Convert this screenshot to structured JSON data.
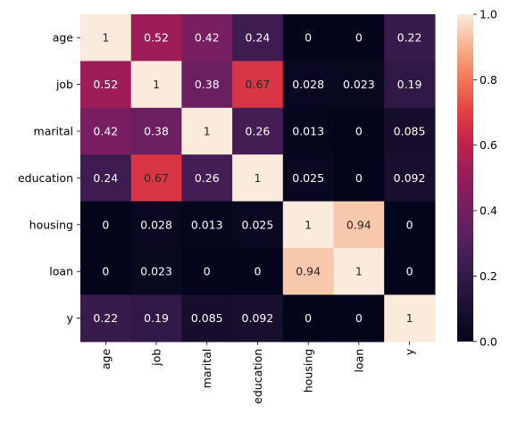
{
  "chart_data": {
    "type": "heatmap",
    "title": "",
    "xlabel": "",
    "ylabel": "",
    "rows": [
      "age",
      "job",
      "marital",
      "education",
      "housing",
      "loan",
      "y"
    ],
    "columns": [
      "age",
      "job",
      "marital",
      "education",
      "housing",
      "loan",
      "y"
    ],
    "values": [
      [
        1,
        0.52,
        0.42,
        0.24,
        0,
        0,
        0.22
      ],
      [
        0.52,
        1,
        0.38,
        0.67,
        0.028,
        0.023,
        0.19
      ],
      [
        0.42,
        0.38,
        1,
        0.26,
        0.013,
        0,
        0.085
      ],
      [
        0.24,
        0.67,
        0.26,
        1,
        0.025,
        0,
        0.092
      ],
      [
        0,
        0.028,
        0.013,
        0.025,
        1,
        0.94,
        0
      ],
      [
        0,
        0.023,
        0,
        0,
        0.94,
        1,
        0
      ],
      [
        0.22,
        0.19,
        0.085,
        0.092,
        0,
        0,
        1
      ]
    ],
    "labels": [
      [
        "1",
        "0.52",
        "0.42",
        "0.24",
        "0",
        "0",
        "0.22"
      ],
      [
        "0.52",
        "1",
        "0.38",
        "0.67",
        "0.028",
        "0.023",
        "0.19"
      ],
      [
        "0.42",
        "0.38",
        "1",
        "0.26",
        "0.013",
        "0",
        "0.085"
      ],
      [
        "0.24",
        "0.67",
        "0.26",
        "1",
        "0.025",
        "0",
        "0.092"
      ],
      [
        "0",
        "0.028",
        "0.013",
        "0.025",
        "1",
        "0.94",
        "0"
      ],
      [
        "0",
        "0.023",
        "0",
        "0",
        "0.94",
        "1",
        "0"
      ],
      [
        "0.22",
        "0.19",
        "0.085",
        "0.092",
        "0",
        "0",
        "1"
      ]
    ],
    "colorbar": {
      "range": [
        0,
        1
      ],
      "ticks": [
        "0.0",
        "0.2",
        "0.4",
        "0.6",
        "0.8",
        "1.0"
      ],
      "colormap": "rocket"
    }
  }
}
